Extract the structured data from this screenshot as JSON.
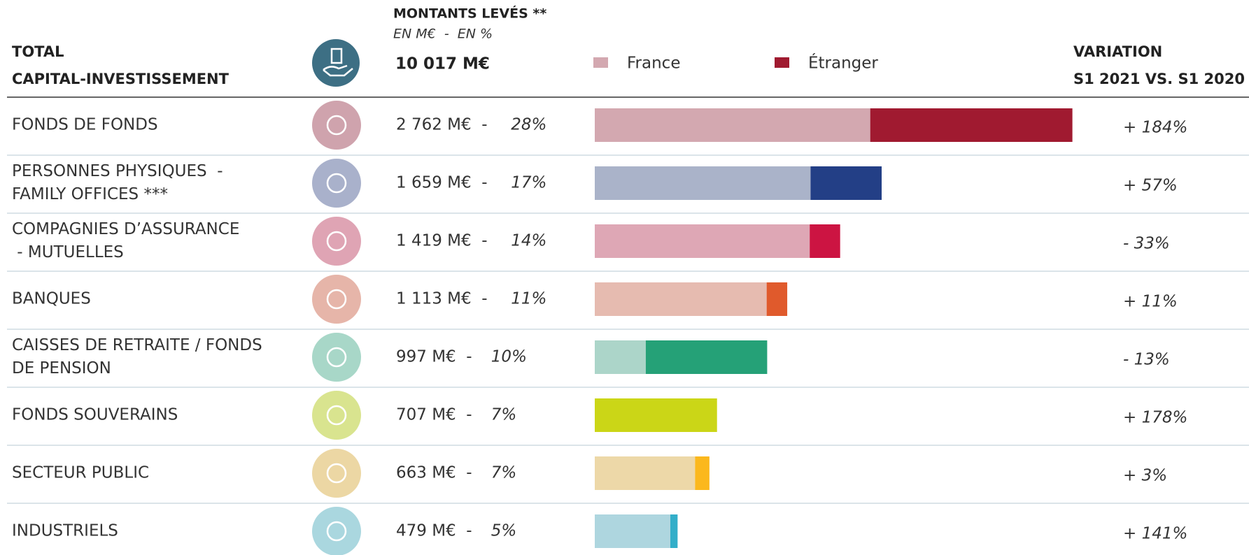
{
  "chart_data": {
    "type": "stacked_barh",
    "header": {
      "left_1": "TOTAL",
      "left_2": "CAPITAL-INVESTISSEMENT",
      "amount_title": "MONTANTS LEVÉS **",
      "amount_units": "EN M€  -  EN %",
      "total": "10 017 M€",
      "variation_1": "VARIATION",
      "variation_2": "S1 2021 VS. S1 2020"
    },
    "legend": [
      {
        "name": "France",
        "color": "#d3a8b0"
      },
      {
        "name": "Étranger",
        "color": "#a01a30"
      }
    ],
    "xlim": [
      0,
      2800
    ],
    "rows": [
      {
        "label": [
          "FONDS DE FONDS"
        ],
        "amount": "2 762 M€  -",
        "share": "28%",
        "variation": "+ 184%",
        "france": 1593,
        "foreign": 1169,
        "colors": [
          "#d3a8b0",
          "#a01a30"
        ],
        "icon_color": "#cfa3ad"
      },
      {
        "label": [
          "PERSONNES PHYSIQUES  -",
          "FAMILY OFFICES ***"
        ],
        "amount": "1 659 M€  -",
        "share": "17%",
        "variation": "+ 57%",
        "france": 1248,
        "foreign": 411,
        "colors": [
          "#aab3c9",
          "#233f86"
        ],
        "icon_color": "#a9b1cb"
      },
      {
        "label": [
          "COMPAGNIES D’ASSURANCE",
          " - MUTUELLES"
        ],
        "amount": "1 419 M€  -",
        "share": "14%",
        "variation": "- 33%",
        "france": 1243,
        "foreign": 176,
        "colors": [
          "#dea7b5",
          "#cc1442"
        ],
        "icon_color": "#dfa4b4"
      },
      {
        "label": [
          "BANQUES"
        ],
        "amount": "1 113 M€  -",
        "share": "11%",
        "variation": "+ 11%",
        "france": 994,
        "foreign": 119,
        "colors": [
          "#e6bbb0",
          "#e05a2c"
        ],
        "icon_color": "#e6b5a9"
      },
      {
        "label": [
          "CAISSES DE RETRAITE / FONDS",
          "DE PENSION"
        ],
        "amount": "997 M€  -",
        "share": "10%",
        "variation": "- 13%",
        "france": 295,
        "foreign": 702,
        "colors": [
          "#acd5c9",
          "#25a177"
        ],
        "icon_color": "#a8d7c8"
      },
      {
        "label": [
          "FONDS SOUVERAINS"
        ],
        "amount": "707 M€  -",
        "share": "7%",
        "variation": "+ 178%",
        "france": 0,
        "foreign": 707,
        "colors": [
          "#e4eb9a",
          "#cbd617"
        ],
        "icon_color": "#d9e48f"
      },
      {
        "label": [
          "SECTEUR PUBLIC"
        ],
        "amount": "663 M€  -",
        "share": "7%",
        "variation": "+ 3%",
        "france": 580,
        "foreign": 83,
        "colors": [
          "#edd8a8",
          "#fbb81d"
        ],
        "icon_color": "#ecd7a4"
      },
      {
        "label": [
          "INDUSTRIELS"
        ],
        "amount": "479 M€  -",
        "share": "5%",
        "variation": "+ 141%",
        "france": 437,
        "foreign": 42,
        "colors": [
          "#aed6df",
          "#33aec9"
        ],
        "icon_color": "#aad7df"
      }
    ]
  }
}
